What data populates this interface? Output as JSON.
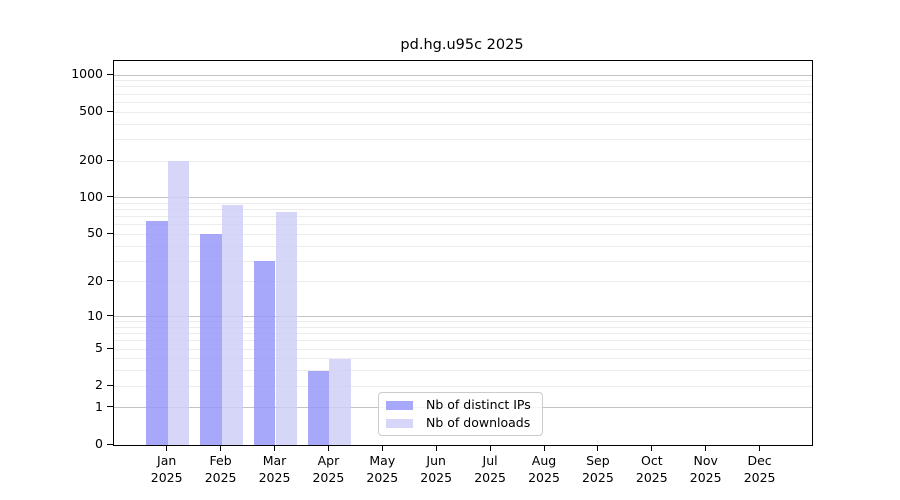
{
  "chart_data": {
    "type": "bar",
    "title": "pd.hg.u95c 2025",
    "months": [
      "Jan",
      "Feb",
      "Mar",
      "Apr",
      "May",
      "Jun",
      "Jul",
      "Aug",
      "Sep",
      "Oct",
      "Nov",
      "Dec"
    ],
    "year": "2025",
    "series": [
      {
        "name": "Nb of distinct IPs",
        "color": "#9999f9",
        "values": [
          65,
          50,
          30,
          3,
          0,
          0,
          0,
          0,
          0,
          0,
          0,
          0
        ]
      },
      {
        "name": "Nb of downloads",
        "color": "#cfcff7",
        "values": [
          200,
          88,
          77,
          4,
          0,
          0,
          0,
          0,
          0,
          0,
          0,
          0
        ]
      }
    ],
    "yscale": "log10(1+x)",
    "yticks": [
      1000,
      500,
      200,
      100,
      50,
      20,
      10,
      5,
      2,
      1,
      0
    ],
    "ylim": [
      0,
      1300
    ],
    "grid": {
      "on": true,
      "minor_color": "#ececec",
      "major_color": "#c3c3c3",
      "major_values": [
        1,
        10,
        100,
        1000
      ]
    },
    "legend": {
      "position": "inside-bottom-center"
    },
    "xlabel": "",
    "ylabel": ""
  }
}
